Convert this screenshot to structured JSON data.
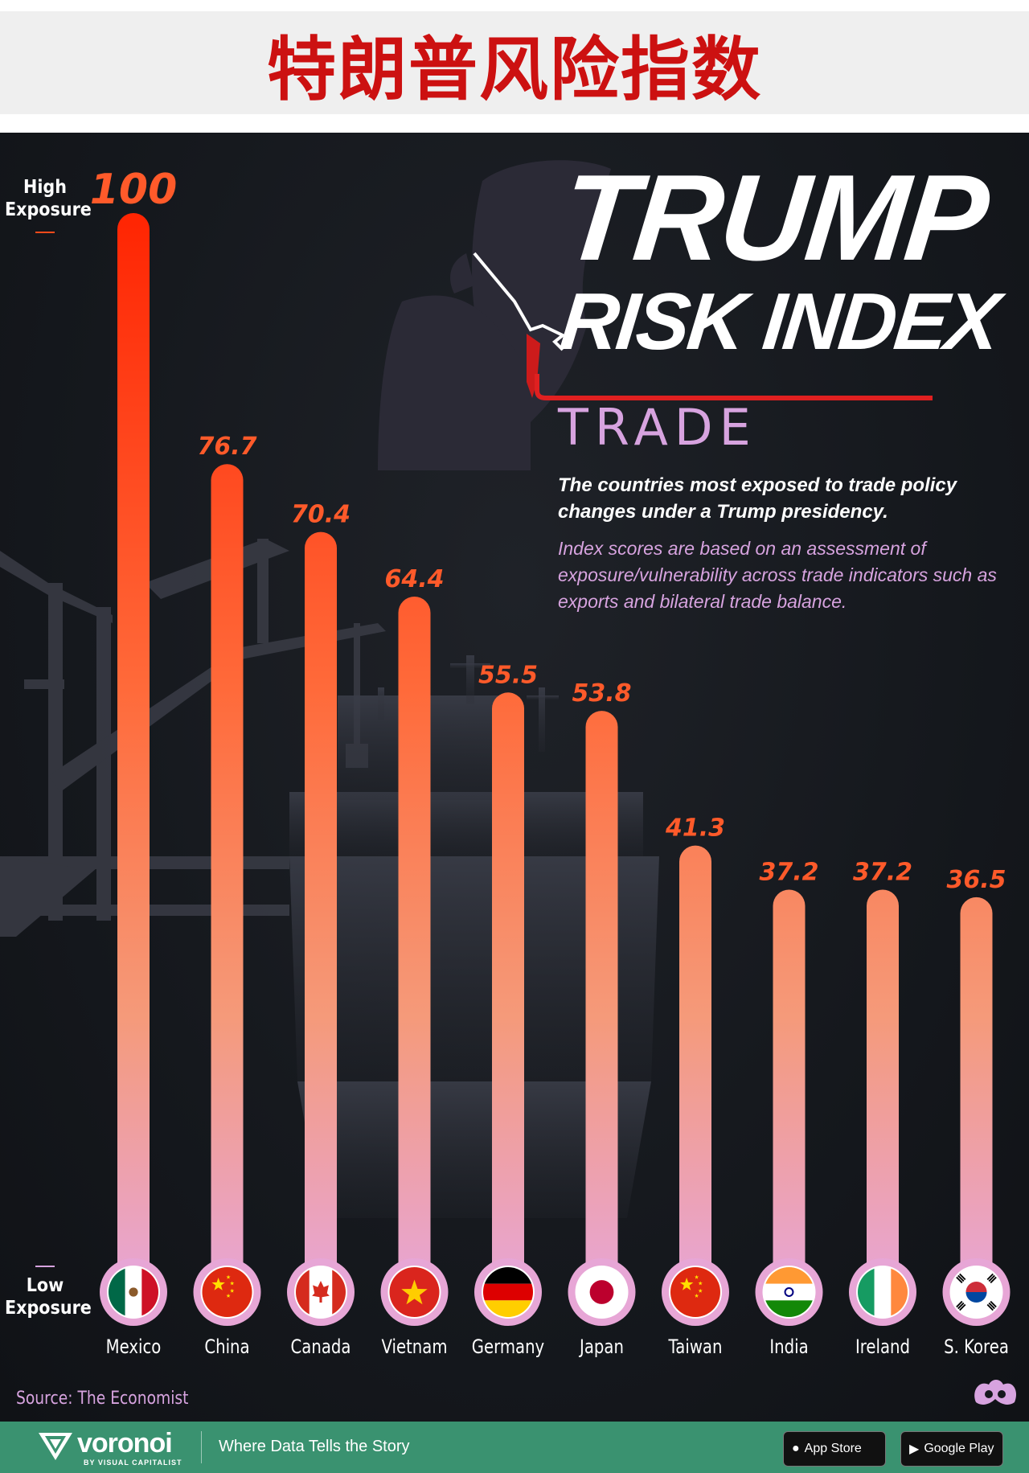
{
  "header": {
    "title": "特朗普风险指数"
  },
  "poster": {
    "logo_line1": "TRUMP",
    "logo_line2": "RISK INDEX",
    "subtitle": "TRADE",
    "description_bold": "The countries most exposed to trade policy changes under a Trump presidency.",
    "description_light": "Index scores are based on an assessment of exposure/vulnerability across trade indicators such as exports and bilateral trade balance.",
    "axis_high": "High Exposure",
    "axis_low": "Low Exposure",
    "source": "Source: The Economist",
    "colors": {
      "bar_top": "#ff2200",
      "bar_mid": "#ff8a5c",
      "bar_bottom": "#e7a6d6",
      "value_label": "#ff5a2a",
      "accent_lilac": "#d7a3df"
    }
  },
  "chart_data": {
    "type": "bar",
    "categories": [
      "Mexico",
      "China",
      "Canada",
      "Vietnam",
      "Germany",
      "Japan",
      "Taiwan",
      "India",
      "Ireland",
      "S. Korea"
    ],
    "values": [
      100,
      76.7,
      70.4,
      64.4,
      55.5,
      53.8,
      41.3,
      37.2,
      37.2,
      36.5
    ],
    "value_labels": [
      "100",
      "76.7",
      "70.4",
      "64.4",
      "55.5",
      "53.8",
      "41.3",
      "37.2",
      "37.2",
      "36.5"
    ],
    "flags": [
      "mexico-flag-icon",
      "china-flag-icon",
      "canada-flag-icon",
      "vietnam-flag-icon",
      "germany-flag-icon",
      "japan-flag-icon",
      "taiwan-flag-icon",
      "india-flag-icon",
      "ireland-flag-icon",
      "south-korea-flag-icon"
    ],
    "ylim": [
      0,
      100
    ],
    "grid": false,
    "legend": "none"
  },
  "footer": {
    "brand": "voronoi",
    "brand_sub": "BY VISUAL CAPITALIST",
    "tagline": "Where Data Tells the Story",
    "app_store": "App Store",
    "google_play": "Google Play"
  }
}
